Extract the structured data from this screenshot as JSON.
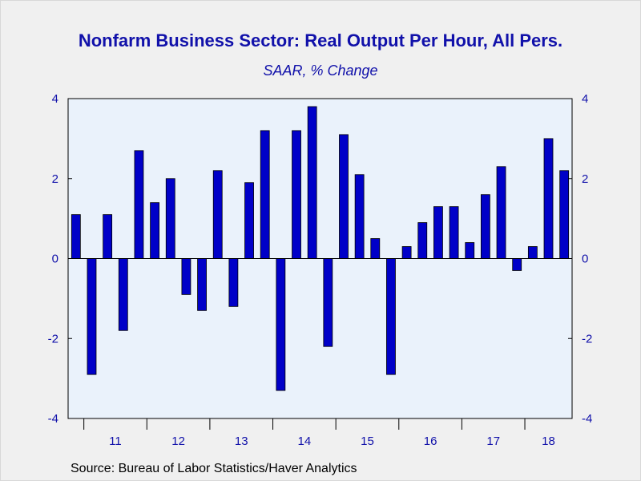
{
  "chart_data": {
    "type": "bar",
    "title": "Nonfarm Business Sector: Real Output Per Hour, All Pers.",
    "subtitle": "SAAR, % Change",
    "source": "Source:  Bureau of Labor Statistics/Haver Analytics",
    "ylim": [
      -4,
      4
    ],
    "yticks": [
      -4,
      -2,
      0,
      2,
      4
    ],
    "ytick_labels": [
      "-4",
      "-2",
      "0",
      "2",
      "4"
    ],
    "year_labels": [
      "11",
      "12",
      "13",
      "14",
      "15",
      "16",
      "17",
      "18"
    ],
    "quarters": [
      "2010Q4",
      "2011Q1",
      "2011Q2",
      "2011Q3",
      "2011Q4",
      "2012Q1",
      "2012Q2",
      "2012Q3",
      "2012Q4",
      "2013Q1",
      "2013Q2",
      "2013Q3",
      "2013Q4",
      "2014Q1",
      "2014Q2",
      "2014Q3",
      "2014Q4",
      "2015Q1",
      "2015Q2",
      "2015Q3",
      "2015Q4",
      "2016Q1",
      "2016Q2",
      "2016Q3",
      "2016Q4",
      "2017Q1",
      "2017Q2",
      "2017Q3",
      "2017Q4",
      "2018Q1",
      "2018Q2",
      "2018Q3"
    ],
    "values": [
      1.1,
      -2.9,
      1.1,
      -1.8,
      2.7,
      1.4,
      2.0,
      -0.9,
      -1.3,
      2.2,
      -1.2,
      1.9,
      3.2,
      -3.3,
      3.2,
      3.8,
      -2.2,
      3.1,
      2.1,
      0.5,
      -2.9,
      0.3,
      0.9,
      1.3,
      1.3,
      0.4,
      1.6,
      2.3,
      -0.3,
      0.3,
      3.0,
      2.2
    ],
    "bar_color": "#0000c8",
    "plot_bg": "#eaf2fb",
    "text_color": "#1111aa",
    "grid": false,
    "legend": "none"
  }
}
